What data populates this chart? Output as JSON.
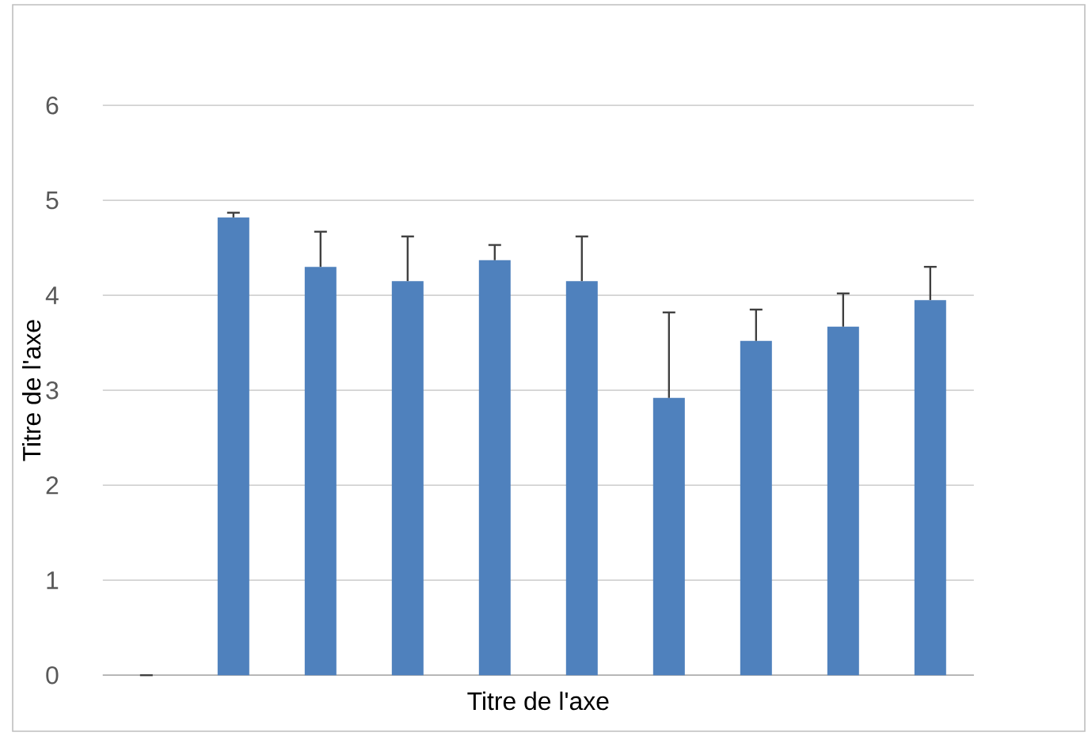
{
  "chart_data": {
    "type": "bar",
    "xlabel": "Titre de l'axe",
    "ylabel": "Titre de l'axe",
    "categories": [
      null,
      null,
      null,
      null,
      null,
      null,
      null,
      null,
      null,
      null
    ],
    "values": [
      0,
      4.82,
      4.3,
      4.15,
      4.37,
      4.15,
      2.92,
      3.52,
      3.67,
      3.95
    ],
    "errors": [
      [
        0,
        0
      ],
      [
        4.82,
        4.87
      ],
      [
        4.3,
        4.67
      ],
      [
        4.15,
        4.62
      ],
      [
        4.37,
        4.53
      ],
      [
        4.15,
        4.62
      ],
      [
        2.92,
        3.82
      ],
      [
        3.52,
        3.85
      ],
      [
        3.67,
        4.02
      ],
      [
        3.95,
        4.3
      ]
    ],
    "color": "#4f81bd",
    "ylim": [
      0,
      6
    ],
    "yticks": [
      0,
      1,
      2,
      3,
      4,
      5,
      6
    ],
    "grid": "y"
  }
}
